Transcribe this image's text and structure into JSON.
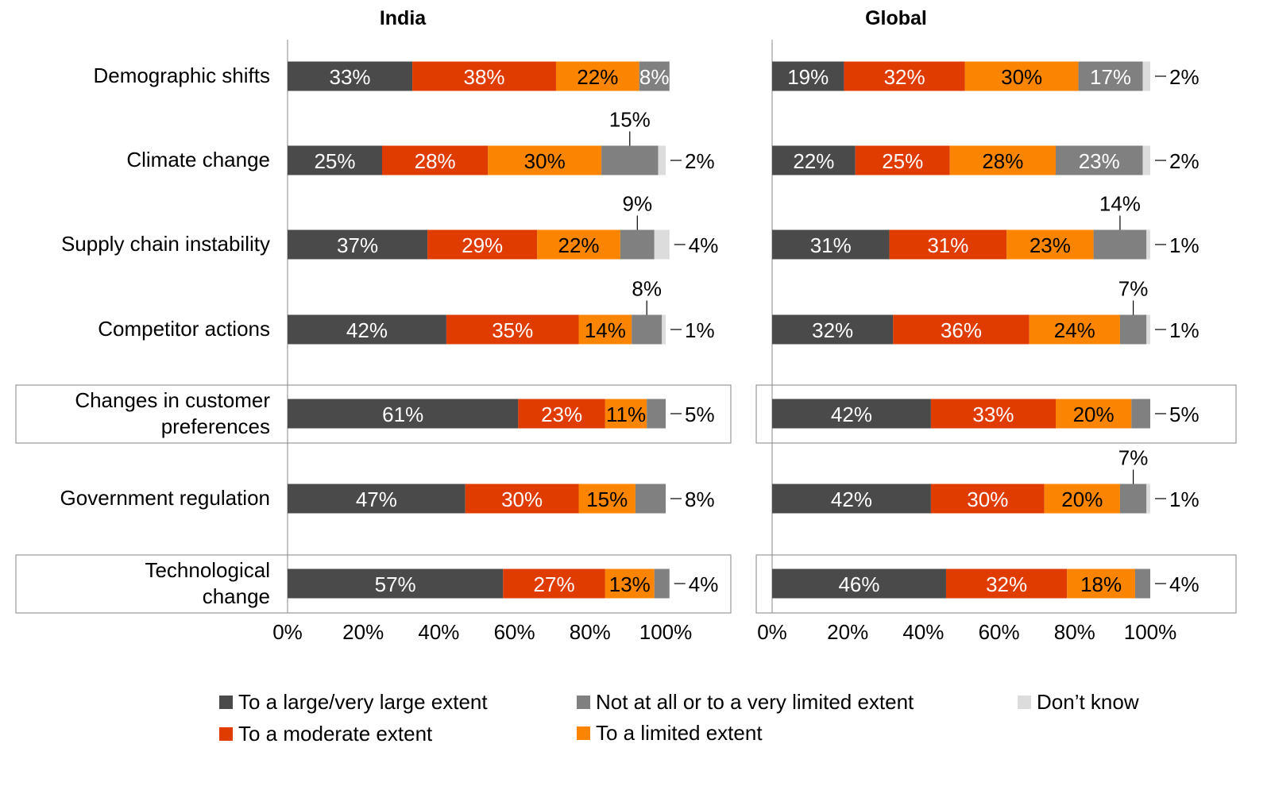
{
  "chart_data": [
    {
      "type": "bar",
      "orientation": "horizontal",
      "stacked": true,
      "title": "India",
      "categories": [
        "Demographic shifts",
        "Climate change",
        "Supply chain instability",
        "Competitor actions",
        "Changes in customer preferences",
        "Government regulation",
        "Technological change"
      ],
      "highlighted_categories": [
        "Changes in customer preferences",
        "Technological change"
      ],
      "series": [
        {
          "name": "To a large/very large extent",
          "values": [
            33,
            25,
            37,
            42,
            61,
            47,
            57
          ]
        },
        {
          "name": "To a moderate extent",
          "values": [
            38,
            28,
            29,
            35,
            23,
            30,
            27
          ]
        },
        {
          "name": "To a limited extent",
          "values": [
            22,
            30,
            22,
            14,
            11,
            15,
            13
          ]
        },
        {
          "name": "Not at all or to a very limited extent",
          "values": [
            8,
            15,
            9,
            8,
            5,
            8,
            4
          ]
        },
        {
          "name": "Don't know",
          "values": [
            0,
            2,
            4,
            1,
            0,
            0,
            0
          ]
        }
      ],
      "label_position": [
        [
          "in",
          "in",
          "in",
          "in",
          "none"
        ],
        [
          "in",
          "in",
          "in",
          "above",
          "right"
        ],
        [
          "in",
          "in",
          "in",
          "above",
          "right"
        ],
        [
          "in",
          "in",
          "in",
          "above",
          "right"
        ],
        [
          "in",
          "in",
          "in",
          "right",
          "none"
        ],
        [
          "in",
          "in",
          "in",
          "right",
          "none"
        ],
        [
          "in",
          "in",
          "in",
          "right",
          "none"
        ]
      ],
      "xlim": [
        0,
        100
      ],
      "xticks": [
        "0%",
        "20%",
        "40%",
        "60%",
        "80%",
        "100%"
      ]
    },
    {
      "type": "bar",
      "orientation": "horizontal",
      "stacked": true,
      "title": "Global",
      "categories": [
        "Demographic shifts",
        "Climate change",
        "Supply chain instability",
        "Competitor actions",
        "Changes in customer preferences",
        "Government regulation",
        "Technological change"
      ],
      "highlighted_categories": [
        "Changes in customer preferences",
        "Technological change"
      ],
      "series": [
        {
          "name": "To a large/very large extent",
          "values": [
            19,
            22,
            31,
            32,
            42,
            42,
            46
          ]
        },
        {
          "name": "To a moderate extent",
          "values": [
            32,
            25,
            31,
            36,
            33,
            30,
            32
          ]
        },
        {
          "name": "To a limited extent",
          "values": [
            30,
            28,
            23,
            24,
            20,
            20,
            18
          ]
        },
        {
          "name": "Not at all or to a very limited extent",
          "values": [
            17,
            23,
            14,
            7,
            5,
            7,
            4
          ]
        },
        {
          "name": "Don't know",
          "values": [
            2,
            2,
            1,
            1,
            0,
            1,
            0
          ]
        }
      ],
      "label_position": [
        [
          "in",
          "in",
          "in",
          "in",
          "right"
        ],
        [
          "in",
          "in",
          "in",
          "in",
          "right"
        ],
        [
          "in",
          "in",
          "in",
          "above",
          "right"
        ],
        [
          "in",
          "in",
          "in",
          "above",
          "right"
        ],
        [
          "in",
          "in",
          "in",
          "right",
          "none"
        ],
        [
          "in",
          "in",
          "in",
          "above",
          "right"
        ],
        [
          "in",
          "in",
          "in",
          "right",
          "none"
        ]
      ],
      "xlim": [
        0,
        100
      ],
      "xticks": [
        "0%",
        "20%",
        "40%",
        "60%",
        "80%",
        "100%"
      ]
    }
  ],
  "legend": [
    {
      "label": "To a large/very large extent",
      "color": "#4a4a4a"
    },
    {
      "label": "To a moderate extent",
      "color": "#e03c00"
    },
    {
      "label": "Not at all or to a very limited extent",
      "color": "#808080"
    },
    {
      "label": "To a limited extent",
      "color": "#fb8500"
    },
    {
      "label": "Don’t know",
      "color": "#dcdcdc"
    }
  ],
  "colors": [
    "#4a4a4a",
    "#e03c00",
    "#fb8500",
    "#808080",
    "#dcdcdc"
  ],
  "label_colors": [
    "#ffffff",
    "#ffffff",
    "#000000",
    "#ffffff",
    "#000000"
  ]
}
